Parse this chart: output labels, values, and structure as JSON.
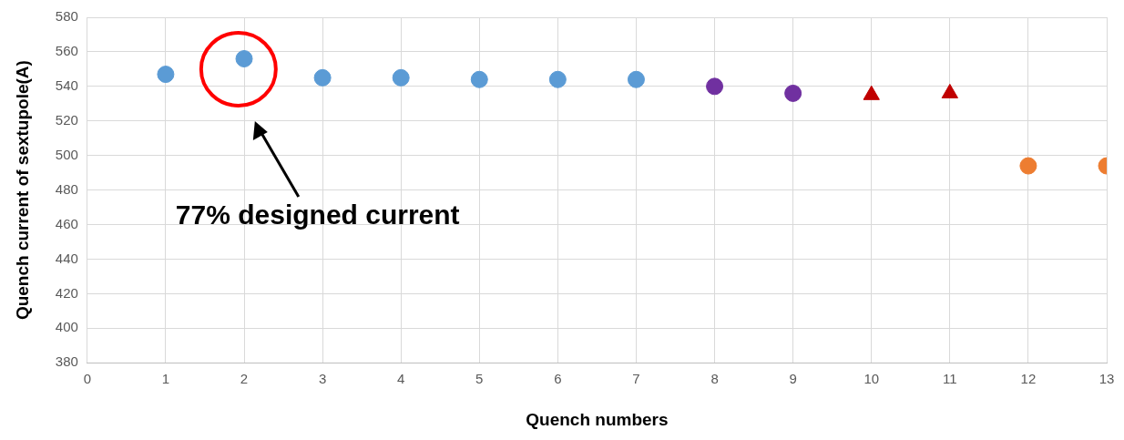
{
  "chart_data": {
    "type": "scatter",
    "xlabel": "Quench numbers",
    "ylabel": "Quench current of sextupole(A)",
    "xlim": [
      0,
      13
    ],
    "xticks": [
      0,
      1,
      2,
      3,
      4,
      5,
      6,
      7,
      8,
      9,
      10,
      11,
      12,
      13
    ],
    "ylim": [
      380,
      580
    ],
    "yticks": [
      380,
      400,
      420,
      440,
      460,
      480,
      500,
      520,
      540,
      560,
      580
    ],
    "grid": true,
    "legend": false,
    "series": [
      {
        "color": "#5b9bd5",
        "marker": "circle",
        "x": [
          1,
          2,
          3,
          4,
          5,
          6,
          7
        ],
        "values": [
          547,
          556,
          545,
          545,
          544,
          544,
          544
        ]
      },
      {
        "color": "#7030a0",
        "marker": "circle",
        "x": [
          8,
          9
        ],
        "values": [
          540,
          536
        ]
      },
      {
        "color": "#c00000",
        "marker": "triangle",
        "x": [
          10,
          11
        ],
        "values": [
          535,
          536
        ]
      },
      {
        "color": "#ed7d31",
        "marker": "circle",
        "x": [
          12,
          13
        ],
        "values": [
          494,
          494
        ]
      }
    ],
    "annotations": [
      "77% designed current"
    ]
  }
}
